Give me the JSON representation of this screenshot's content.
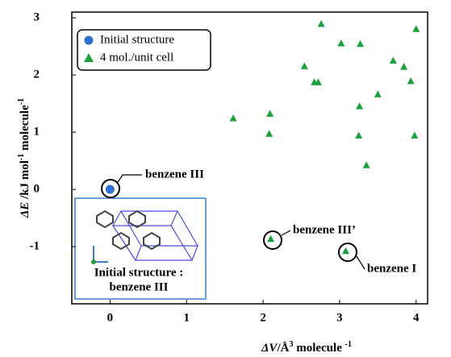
{
  "chart_data": {
    "type": "scatter",
    "x_label": [
      "ΔV",
      "/Å",
      "3",
      " molecule ",
      "-1"
    ],
    "y_label": [
      "ΔE",
      " /kJ mol",
      "-1",
      "  molecule",
      "-1"
    ],
    "xlim": [
      -0.5,
      4.15
    ],
    "ylim": [
      -2,
      3.1
    ],
    "xticks": [
      0,
      1,
      2,
      3,
      4
    ],
    "yticks": [
      -1,
      0,
      1,
      2,
      3
    ],
    "series": [
      {
        "name": "Initial structure",
        "color": "#2e6fcf",
        "marker": "circle",
        "x": [
          0
        ],
        "values": [
          0
        ]
      },
      {
        "name": "4 mol./unit cell",
        "color": "#1ba03c",
        "marker": "triangle",
        "x": [
          2.76,
          4.0,
          3.02,
          3.27,
          2.54,
          3.7,
          3.84,
          2.67,
          2.72,
          3.93,
          3.5,
          3.26,
          2.09,
          1.61,
          2.08,
          3.25,
          3.98,
          3.35,
          2.1,
          3.08
        ],
        "values": [
          2.89,
          2.8,
          2.55,
          2.54,
          2.15,
          2.25,
          2.14,
          1.87,
          1.87,
          1.89,
          1.66,
          1.45,
          1.32,
          1.24,
          0.97,
          0.94,
          0.94,
          0.42,
          -0.87,
          -1.08
        ]
      }
    ],
    "annotations": [
      "benzene III",
      "benzene III’",
      "benzene I"
    ],
    "inset_caption": [
      "Initial structure :",
      "benzene III"
    ]
  }
}
